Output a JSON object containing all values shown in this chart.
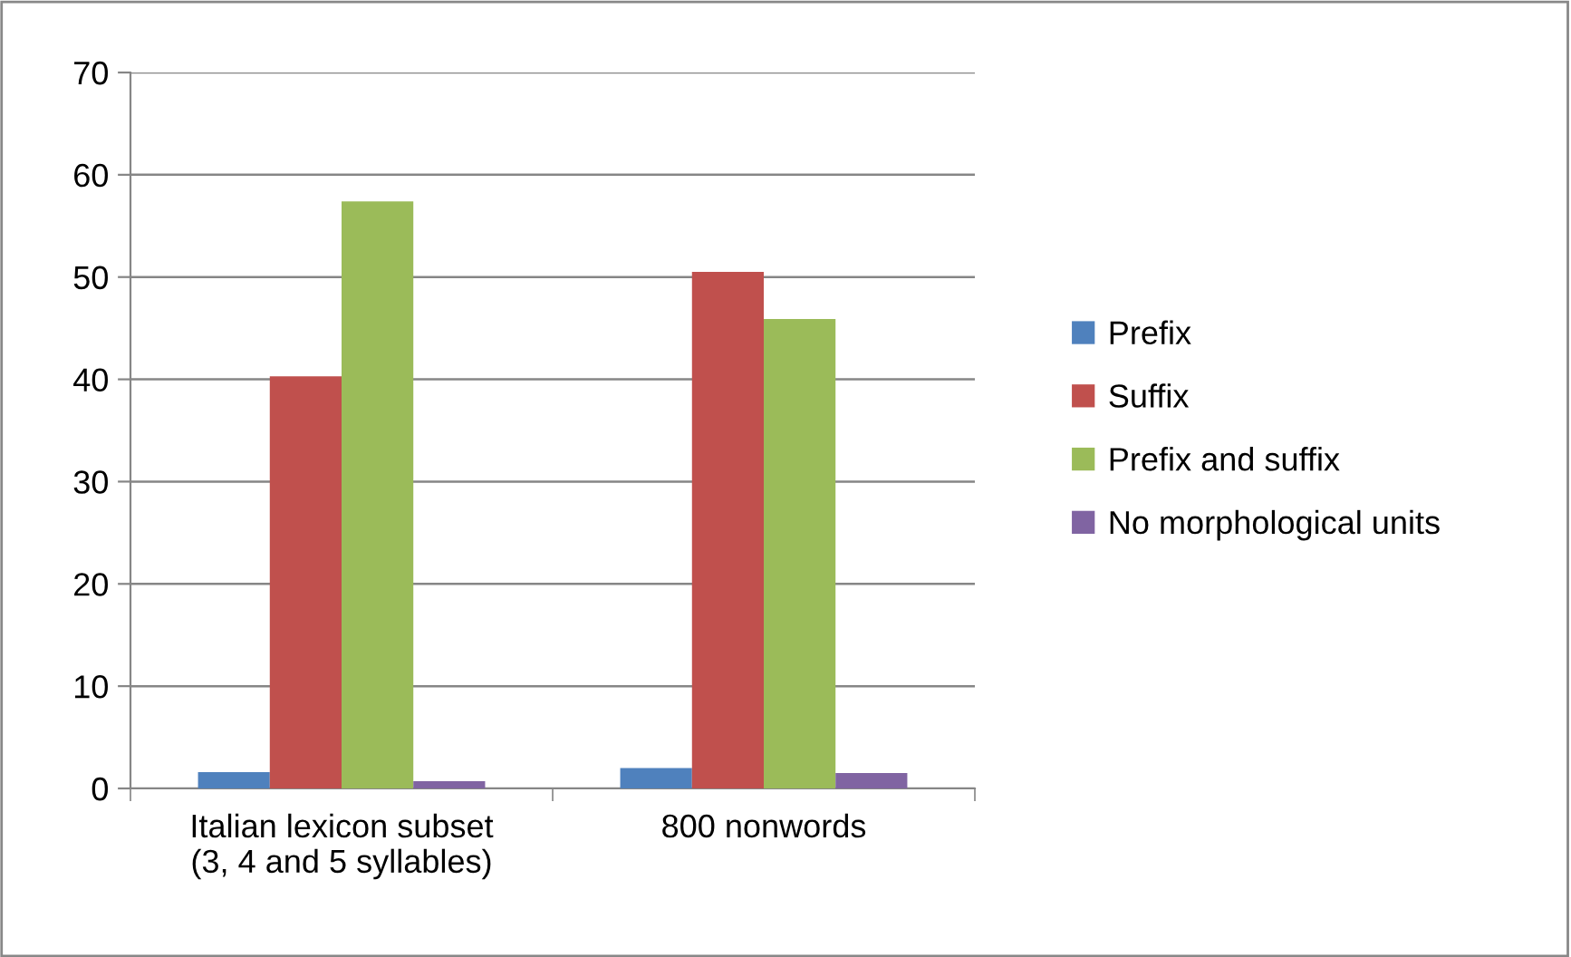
{
  "chart_data": {
    "type": "bar",
    "categories": [
      "Italian lexicon subset\n(3, 4 and 5 syllables)",
      "800 nonwords"
    ],
    "series": [
      {
        "name": "Prefix",
        "color": "#4f81bd",
        "values": [
          1.6,
          2.0
        ]
      },
      {
        "name": "Suffix",
        "color": "#c0504d",
        "values": [
          40.3,
          50.5
        ]
      },
      {
        "name": "Prefix and suffix",
        "color": "#9bbb59",
        "values": [
          57.4,
          45.9
        ]
      },
      {
        "name": "No morphological units",
        "color": "#8064a2",
        "values": [
          0.7,
          1.5
        ]
      }
    ],
    "ylim": [
      0,
      70
    ],
    "yticks": [
      0,
      10,
      20,
      30,
      40,
      50,
      60,
      70
    ],
    "grid": "y",
    "legend": "right"
  }
}
